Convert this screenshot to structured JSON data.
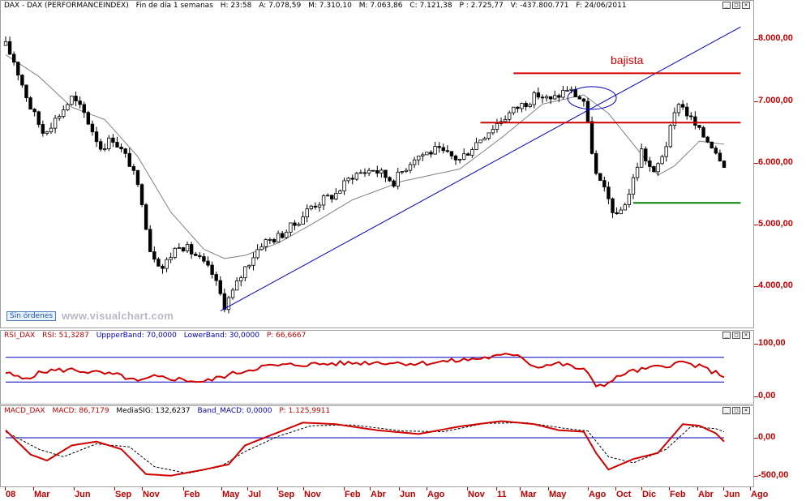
{
  "main_header": {
    "symbol": "DAX - DAX (PERFORMANCEINDEX)",
    "period": "Fin de día 1 semanas",
    "hour": "H: 23:58",
    "open": "A: 7.078,59",
    "high": "M: 7.310,10",
    "low": "M: 7.063,86",
    "close": "C: 7.121,38",
    "points": "P : 2.725,77",
    "volume": "V: -437.800.771",
    "date": "F: 24/06/2011"
  },
  "rsi_header": {
    "name": "RSI_DAX",
    "value": "RSI: 51,3287",
    "upper": "UppperBand: 70,0000",
    "lower": "LowerBand: 30,0000",
    "points": "P: 66,6667"
  },
  "macd_header": {
    "name": "MACD_DAX",
    "value": "MACD: 86,7179",
    "signal": "MediaSIG: 132,6237",
    "band": "Band_MACD: 0,0000",
    "points": "P: 1.125,9911"
  },
  "window_buttons": [
    "_",
    "□",
    "×"
  ],
  "badge": "Sin órdenes",
  "watermark": "www.visualchart.com",
  "annotation": "bajista",
  "colors": {
    "price": "#000000",
    "ma": "#808080",
    "trend": "#0000c0",
    "resistance": "#d00000",
    "support": "#008000",
    "indicator": "#d00000",
    "axis_text": "#c00000"
  },
  "chart_data": [
    {
      "type": "candlestick",
      "x_labels": [
        "08",
        "Mar",
        "Jun",
        "Sep",
        "Nov",
        "Feb",
        "May",
        "Jul",
        "Sep",
        "Nov",
        "Feb",
        "Abr",
        "Jun",
        "Ago",
        "Nov",
        "11",
        "Mar",
        "May",
        "Ago",
        "Oct",
        "Dic",
        "Feb",
        "Abr",
        "Jun",
        "Ago"
      ],
      "y_ticks": [
        "8.000,00",
        "7.000,00",
        "6.000,00",
        "5.000,00",
        "4.000,00"
      ],
      "y_tick_values": [
        8000,
        7000,
        6000,
        5000,
        4000
      ],
      "ylim": [
        3450,
        8400
      ],
      "weeks": 168,
      "close_anchors": [
        [
          0,
          7900
        ],
        [
          2,
          7650
        ],
        [
          6,
          6900
        ],
        [
          9,
          6500
        ],
        [
          12,
          6700
        ],
        [
          16,
          7050
        ],
        [
          19,
          6800
        ],
        [
          23,
          6250
        ],
        [
          26,
          6400
        ],
        [
          30,
          6000
        ],
        [
          33,
          5400
        ],
        [
          35,
          4600
        ],
        [
          38,
          4300
        ],
        [
          42,
          4700
        ],
        [
          46,
          4500
        ],
        [
          50,
          4200
        ],
        [
          53,
          3700
        ],
        [
          55,
          3900
        ],
        [
          58,
          4300
        ],
        [
          62,
          4700
        ],
        [
          66,
          4800
        ],
        [
          70,
          5000
        ],
        [
          74,
          5300
        ],
        [
          80,
          5500
        ],
        [
          84,
          5800
        ],
        [
          89,
          5900
        ],
        [
          94,
          5700
        ],
        [
          99,
          6100
        ],
        [
          104,
          6200
        ],
        [
          110,
          6050
        ],
        [
          115,
          6400
        ],
        [
          120,
          6700
        ],
        [
          124,
          6900
        ],
        [
          129,
          7100
        ],
        [
          132,
          7000
        ],
        [
          136,
          7200
        ],
        [
          140,
          7000
        ],
        [
          143,
          5800
        ],
        [
          146,
          5400
        ],
        [
          148,
          5100
        ],
        [
          151,
          5500
        ],
        [
          154,
          6200
        ],
        [
          157,
          5800
        ],
        [
          160,
          6300
        ],
        [
          163,
          7000
        ],
        [
          166,
          6700
        ],
        [
          168,
          6500
        ],
        [
          171,
          6300
        ],
        [
          174,
          6000
        ]
      ],
      "ma_anchors": [
        [
          0,
          7750
        ],
        [
          8,
          7400
        ],
        [
          16,
          6900
        ],
        [
          24,
          6700
        ],
        [
          32,
          6100
        ],
        [
          40,
          5200
        ],
        [
          48,
          4600
        ],
        [
          53,
          4450
        ],
        [
          58,
          4500
        ],
        [
          66,
          4700
        ],
        [
          74,
          5000
        ],
        [
          84,
          5400
        ],
        [
          96,
          5700
        ],
        [
          110,
          5900
        ],
        [
          120,
          6400
        ],
        [
          130,
          6950
        ],
        [
          140,
          7100
        ],
        [
          146,
          6800
        ],
        [
          152,
          6300
        ],
        [
          158,
          5800
        ],
        [
          162,
          5950
        ],
        [
          168,
          6350
        ],
        [
          174,
          6300
        ]
      ],
      "trend_line": [
        [
          52,
          3600
        ],
        [
          178,
          8200
        ]
      ],
      "resistance_levels": [
        {
          "from": 123,
          "to": 178,
          "value": 7450
        },
        {
          "from": 115,
          "to": 178,
          "value": 6650
        }
      ],
      "support_levels": [
        {
          "from": 152,
          "to": 178,
          "value": 5350
        }
      ],
      "ellipse_center": [
        142,
        7050
      ]
    },
    {
      "type": "line",
      "title": "RSI_DAX",
      "y_ticks": [
        "100,00",
        "0,00"
      ],
      "ylim": [
        0,
        100
      ],
      "bands": [
        70,
        30
      ],
      "anchors": [
        [
          0,
          45
        ],
        [
          4,
          35
        ],
        [
          10,
          48
        ],
        [
          16,
          50
        ],
        [
          22,
          45
        ],
        [
          28,
          40
        ],
        [
          32,
          30
        ],
        [
          36,
          38
        ],
        [
          40,
          36
        ],
        [
          44,
          33
        ],
        [
          48,
          30
        ],
        [
          52,
          38
        ],
        [
          56,
          45
        ],
        [
          62,
          55
        ],
        [
          70,
          58
        ],
        [
          80,
          60
        ],
        [
          90,
          62
        ],
        [
          100,
          60
        ],
        [
          110,
          65
        ],
        [
          120,
          72
        ],
        [
          124,
          76
        ],
        [
          128,
          55
        ],
        [
          134,
          60
        ],
        [
          140,
          50
        ],
        [
          143,
          25
        ],
        [
          146,
          28
        ],
        [
          150,
          45
        ],
        [
          156,
          52
        ],
        [
          164,
          62
        ],
        [
          168,
          55
        ],
        [
          172,
          45
        ],
        [
          174,
          40
        ]
      ]
    },
    {
      "type": "line",
      "title": "MACD_DAX",
      "y_ticks": [
        "0,00",
        "-500,00"
      ],
      "ylim": [
        -620,
        300
      ],
      "series": [
        {
          "name": "MACD",
          "anchors": [
            [
              0,
              100
            ],
            [
              6,
              -220
            ],
            [
              10,
              -300
            ],
            [
              16,
              -100
            ],
            [
              22,
              -50
            ],
            [
              28,
              -150
            ],
            [
              34,
              -480
            ],
            [
              40,
              -500
            ],
            [
              48,
              -420
            ],
            [
              54,
              -350
            ],
            [
              58,
              -100
            ],
            [
              64,
              30
            ],
            [
              72,
              200
            ],
            [
              80,
              180
            ],
            [
              90,
              100
            ],
            [
              100,
              50
            ],
            [
              110,
              150
            ],
            [
              120,
              220
            ],
            [
              128,
              180
            ],
            [
              134,
              100
            ],
            [
              140,
              80
            ],
            [
              143,
              -200
            ],
            [
              146,
              -420
            ],
            [
              152,
              -280
            ],
            [
              158,
              -200
            ],
            [
              164,
              180
            ],
            [
              168,
              160
            ],
            [
              172,
              60
            ],
            [
              174,
              -50
            ]
          ]
        },
        {
          "name": "MediaSIG",
          "anchors": [
            [
              0,
              80
            ],
            [
              8,
              -150
            ],
            [
              14,
              -250
            ],
            [
              22,
              -80
            ],
            [
              30,
              -120
            ],
            [
              36,
              -380
            ],
            [
              44,
              -470
            ],
            [
              52,
              -380
            ],
            [
              58,
              -180
            ],
            [
              66,
              20
            ],
            [
              74,
              160
            ],
            [
              84,
              170
            ],
            [
              96,
              90
            ],
            [
              106,
              80
            ],
            [
              116,
              190
            ],
            [
              126,
              200
            ],
            [
              136,
              120
            ],
            [
              141,
              90
            ],
            [
              146,
              -250
            ],
            [
              152,
              -330
            ],
            [
              160,
              -150
            ],
            [
              166,
              150
            ],
            [
              172,
              120
            ],
            [
              174,
              80
            ]
          ]
        }
      ]
    }
  ]
}
